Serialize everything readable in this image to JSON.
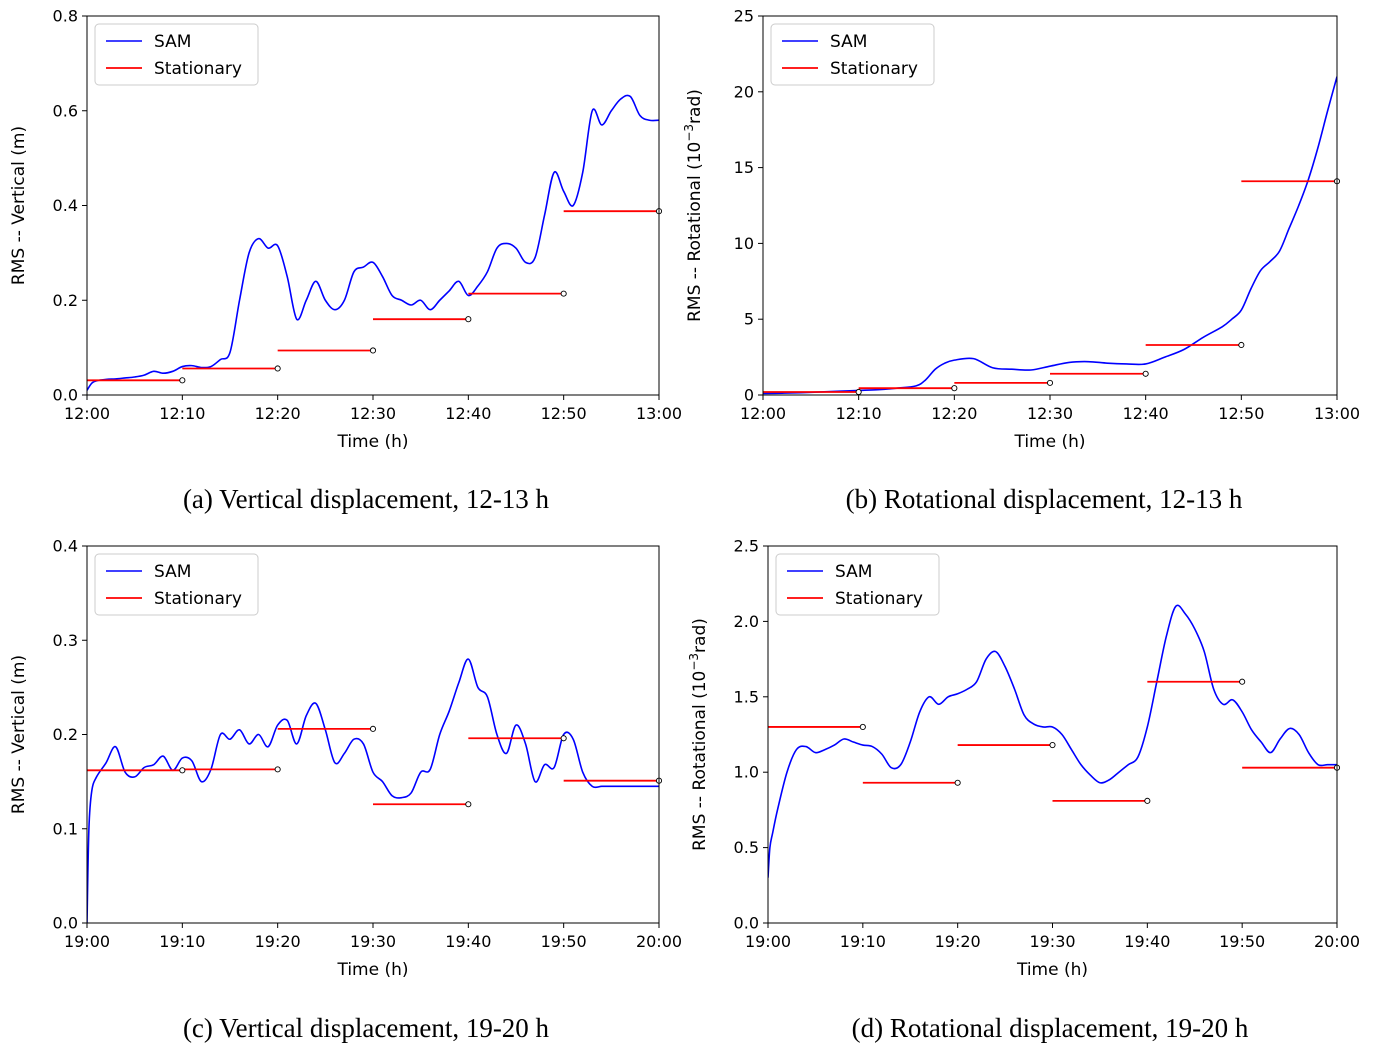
{
  "colors": {
    "sam": "#0000ff",
    "stationary": "#ff0000",
    "axis": "#000000"
  },
  "chart_data": [
    {
      "type": "line",
      "caption": "(a) Vertical displacement, 12-13 h",
      "xlabel": "Time (h)",
      "ylabel": "RMS -- Vertical (m)",
      "ylabel_sup": "",
      "ylabel_end": "",
      "xlim": [
        0,
        60
      ],
      "ylim": [
        0,
        0.8
      ],
      "xticks": [
        0,
        10,
        20,
        30,
        40,
        50,
        60
      ],
      "xticklabels": [
        "12:00",
        "12:10",
        "12:20",
        "12:30",
        "12:40",
        "12:50",
        "13:00"
      ],
      "yticks": [
        0,
        0.2,
        0.4,
        0.6,
        0.8
      ],
      "yticklabels": [
        "0.0",
        "0.2",
        "0.4",
        "0.6",
        "0.8"
      ],
      "legend": {
        "position": "top-left",
        "entries": [
          "SAM",
          "Stationary"
        ]
      },
      "series": [
        {
          "name": "SAM",
          "x": [
            0,
            0.5,
            1,
            2,
            3,
            4,
            5,
            6,
            7,
            8,
            9,
            10,
            11,
            12,
            13,
            14,
            15,
            16,
            17,
            18,
            19,
            20,
            21,
            22,
            23,
            24,
            25,
            26,
            27,
            28,
            29,
            30,
            31,
            32,
            33,
            34,
            35,
            36,
            37,
            38,
            39,
            40,
            41,
            42,
            43,
            44,
            45,
            46,
            47,
            48,
            49,
            50,
            51,
            52,
            53,
            54,
            55,
            56,
            57,
            58,
            59,
            60
          ],
          "y": [
            0.01,
            0.025,
            0.03,
            0.033,
            0.034,
            0.036,
            0.038,
            0.042,
            0.05,
            0.046,
            0.05,
            0.06,
            0.062,
            0.058,
            0.06,
            0.075,
            0.09,
            0.2,
            0.3,
            0.33,
            0.31,
            0.315,
            0.25,
            0.16,
            0.2,
            0.24,
            0.2,
            0.18,
            0.2,
            0.26,
            0.27,
            0.28,
            0.25,
            0.21,
            0.2,
            0.19,
            0.2,
            0.18,
            0.2,
            0.22,
            0.24,
            0.21,
            0.23,
            0.26,
            0.31,
            0.32,
            0.31,
            0.28,
            0.29,
            0.38,
            0.47,
            0.43,
            0.4,
            0.47,
            0.6,
            0.57,
            0.6,
            0.625,
            0.63,
            0.59,
            0.58,
            0.58
          ]
        },
        {
          "name": "Stationary",
          "segments": [
            [
              0,
              10,
              0.031
            ],
            [
              10,
              20,
              0.056
            ],
            [
              20,
              30,
              0.094
            ],
            [
              30,
              40,
              0.16
            ],
            [
              40,
              50,
              0.214
            ],
            [
              50,
              60,
              0.388
            ]
          ]
        }
      ]
    },
    {
      "type": "line",
      "caption": "(b) Rotational displacement, 12-13 h",
      "xlabel": "Time (h)",
      "ylabel": "RMS -- Rotational (10",
      "ylabel_sup": "−3",
      "ylabel_end": "rad)",
      "xlim": [
        0,
        60
      ],
      "ylim": [
        0,
        25
      ],
      "xticks": [
        0,
        10,
        20,
        30,
        40,
        50,
        60
      ],
      "xticklabels": [
        "12:00",
        "12:10",
        "12:20",
        "12:30",
        "12:40",
        "12:50",
        "13:00"
      ],
      "yticks": [
        0,
        5,
        10,
        15,
        20,
        25
      ],
      "yticklabels": [
        "0",
        "5",
        "10",
        "15",
        "20",
        "25"
      ],
      "legend": {
        "position": "top-left",
        "entries": [
          "SAM",
          "Stationary"
        ]
      },
      "series": [
        {
          "name": "SAM",
          "x": [
            0,
            2,
            4,
            6,
            8,
            10,
            12,
            14,
            16,
            17,
            18,
            19,
            20,
            22,
            24,
            26,
            28,
            30,
            32,
            34,
            36,
            38,
            40,
            42,
            44,
            46,
            48,
            49,
            50,
            51,
            52,
            53,
            54,
            55,
            56,
            57,
            58,
            59,
            60
          ],
          "y": [
            0.1,
            0.12,
            0.15,
            0.2,
            0.25,
            0.3,
            0.35,
            0.45,
            0.6,
            1.0,
            1.7,
            2.1,
            2.3,
            2.4,
            1.8,
            1.7,
            1.65,
            1.9,
            2.15,
            2.2,
            2.1,
            2.05,
            2.05,
            2.5,
            3.0,
            3.8,
            4.5,
            5.0,
            5.6,
            7.0,
            8.2,
            8.8,
            9.5,
            11,
            12.5,
            14.2,
            16.3,
            18.7,
            21
          ]
        },
        {
          "name": "Stationary",
          "segments": [
            [
              0,
              10,
              0.2
            ],
            [
              10,
              20,
              0.45
            ],
            [
              20,
              30,
              0.8
            ],
            [
              30,
              40,
              1.4
            ],
            [
              40,
              50,
              3.3
            ],
            [
              50,
              60,
              14.1
            ]
          ]
        }
      ]
    },
    {
      "type": "line",
      "caption": "(c) Vertical displacement, 19-20 h",
      "xlabel": "Time (h)",
      "ylabel": "RMS -- Vertical (m)",
      "ylabel_sup": "",
      "ylabel_end": "",
      "xlim": [
        0,
        60
      ],
      "ylim": [
        0,
        0.4
      ],
      "xticks": [
        0,
        10,
        20,
        30,
        40,
        50,
        60
      ],
      "xticklabels": [
        "19:00",
        "19:10",
        "19:20",
        "19:30",
        "19:40",
        "19:50",
        "20:00"
      ],
      "yticks": [
        0,
        0.1,
        0.2,
        0.3,
        0.4
      ],
      "yticklabels": [
        "0.0",
        "0.1",
        "0.2",
        "0.3",
        "0.4"
      ],
      "legend": {
        "position": "top-left",
        "entries": [
          "SAM",
          "Stationary"
        ]
      },
      "series": [
        {
          "name": "SAM",
          "x": [
            0,
            0.2,
            0.5,
            1,
            2,
            3,
            4,
            5,
            6,
            7,
            8,
            9,
            10,
            11,
            12,
            13,
            14,
            15,
            16,
            17,
            18,
            19,
            20,
            21,
            22,
            23,
            24,
            25,
            26,
            27,
            28,
            29,
            30,
            31,
            32,
            33,
            34,
            35,
            36,
            37,
            38,
            39,
            40,
            41,
            42,
            43,
            44,
            45,
            46,
            47,
            48,
            49,
            50,
            51,
            52,
            53,
            54,
            55,
            56,
            57,
            58,
            59,
            60
          ],
          "y": [
            0.0,
            0.1,
            0.14,
            0.155,
            0.17,
            0.187,
            0.16,
            0.155,
            0.165,
            0.168,
            0.177,
            0.162,
            0.175,
            0.172,
            0.15,
            0.163,
            0.2,
            0.195,
            0.205,
            0.19,
            0.2,
            0.187,
            0.21,
            0.215,
            0.19,
            0.22,
            0.233,
            0.205,
            0.17,
            0.18,
            0.195,
            0.19,
            0.16,
            0.15,
            0.135,
            0.133,
            0.138,
            0.16,
            0.163,
            0.2,
            0.225,
            0.255,
            0.28,
            0.25,
            0.24,
            0.2,
            0.18,
            0.21,
            0.19,
            0.15,
            0.168,
            0.165,
            0.2,
            0.195,
            0.16,
            0.145,
            0.145,
            0.145,
            0.145,
            0.145,
            0.145,
            0.145,
            0.145
          ]
        },
        {
          "name": "Stationary",
          "segments": [
            [
              0,
              10,
              0.162
            ],
            [
              10,
              20,
              0.163
            ],
            [
              20,
              30,
              0.206
            ],
            [
              30,
              40,
              0.126
            ],
            [
              40,
              50,
              0.196
            ],
            [
              50,
              60,
              0.151
            ]
          ]
        }
      ]
    },
    {
      "type": "line",
      "caption": "(d) Rotational displacement, 19-20 h",
      "xlabel": "Time (h)",
      "ylabel": "RMS -- Rotational (10",
      "ylabel_sup": "−3",
      "ylabel_end": "rad)",
      "xlim": [
        0,
        60
      ],
      "ylim": [
        0,
        2.5
      ],
      "xticks": [
        0,
        10,
        20,
        30,
        40,
        50,
        60
      ],
      "xticklabels": [
        "19:00",
        "19:10",
        "19:20",
        "19:30",
        "19:40",
        "19:50",
        "20:00"
      ],
      "yticks": [
        0,
        0.5,
        1.0,
        1.5,
        2.0,
        2.5
      ],
      "yticklabels": [
        "0.0",
        "0.5",
        "1.0",
        "1.5",
        "2.0",
        "2.5"
      ],
      "legend": {
        "position": "top-left",
        "entries": [
          "SAM",
          "Stationary"
        ]
      },
      "series": [
        {
          "name": "SAM",
          "x": [
            0,
            0.2,
            0.5,
            1,
            2,
            3,
            4,
            5,
            6,
            7,
            8,
            9,
            10,
            11,
            12,
            13,
            14,
            15,
            16,
            17,
            18,
            19,
            20,
            21,
            22,
            23,
            24,
            25,
            26,
            27,
            28,
            29,
            30,
            31,
            32,
            33,
            34,
            35,
            36,
            37,
            38,
            39,
            40,
            41,
            42,
            43,
            44,
            45,
            46,
            47,
            48,
            49,
            50,
            51,
            52,
            53,
            54,
            55,
            56,
            57,
            58,
            59,
            60
          ],
          "y": [
            0.3,
            0.5,
            0.6,
            0.75,
            1.0,
            1.15,
            1.17,
            1.13,
            1.15,
            1.18,
            1.22,
            1.2,
            1.18,
            1.17,
            1.12,
            1.03,
            1.05,
            1.2,
            1.4,
            1.5,
            1.45,
            1.5,
            1.52,
            1.55,
            1.6,
            1.75,
            1.8,
            1.7,
            1.55,
            1.38,
            1.32,
            1.3,
            1.3,
            1.25,
            1.15,
            1.05,
            0.98,
            0.93,
            0.95,
            1.0,
            1.05,
            1.1,
            1.3,
            1.6,
            1.9,
            2.1,
            2.05,
            1.95,
            1.8,
            1.55,
            1.45,
            1.48,
            1.4,
            1.28,
            1.2,
            1.13,
            1.22,
            1.29,
            1.25,
            1.13,
            1.05,
            1.05,
            1.05
          ]
        },
        {
          "name": "Stationary",
          "segments": [
            [
              0,
              10,
              1.3
            ],
            [
              10,
              20,
              0.93
            ],
            [
              20,
              30,
              1.18
            ],
            [
              30,
              40,
              0.81
            ],
            [
              40,
              50,
              1.6
            ],
            [
              50,
              60,
              1.03
            ]
          ]
        }
      ]
    }
  ]
}
